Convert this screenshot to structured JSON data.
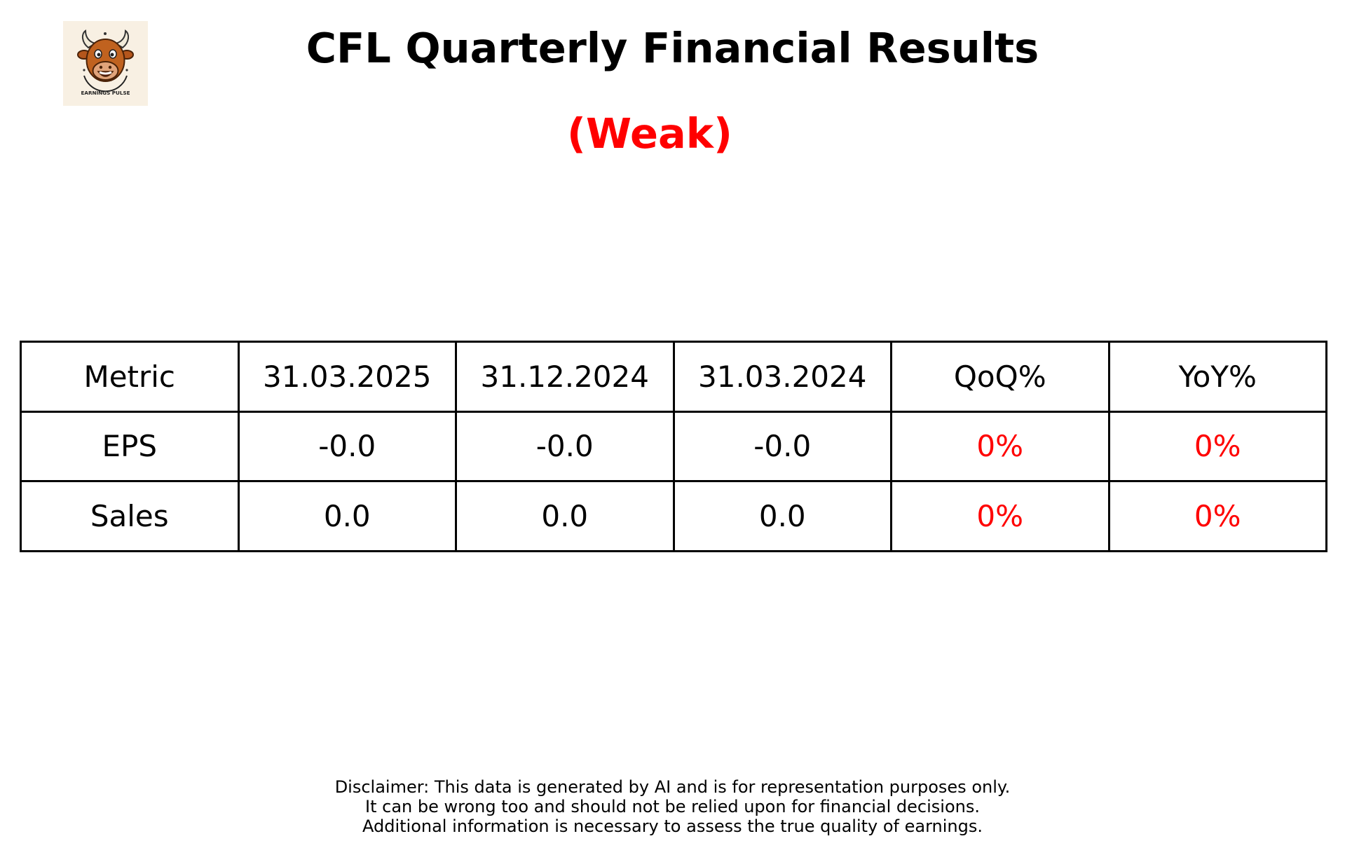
{
  "logo": {
    "text": "EARNINGS PULSE",
    "icon": "bull-mascot-icon"
  },
  "title": "CFL Quarterly Financial Results",
  "rating": {
    "label": "(Weak)",
    "color": "#ff0000"
  },
  "chart_data": {
    "type": "table",
    "columns": [
      "Metric",
      "31.03.2025",
      "31.12.2024",
      "31.03.2024",
      "QoQ%",
      "YoY%"
    ],
    "rows": [
      [
        "EPS",
        "-0.0",
        "-0.0",
        "-0.0",
        "0%",
        "0%"
      ],
      [
        "Sales",
        "0.0",
        "0.0",
        "0.0",
        "0%",
        "0%"
      ]
    ],
    "change_color": "#ff0000",
    "text_color": "#000000"
  },
  "disclaimer": [
    "Disclaimer: This data is generated by AI and is for representation purposes only.",
    "It can be wrong too and should not be relied upon for financial decisions.",
    "Additional information is necessary to assess the true quality of earnings."
  ]
}
